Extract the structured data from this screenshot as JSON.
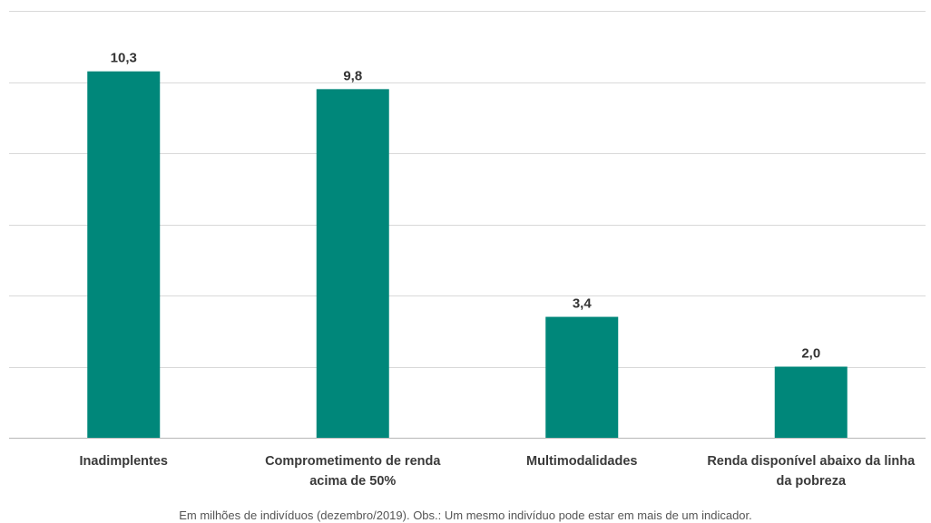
{
  "chart_data": {
    "type": "bar",
    "categories": [
      [
        "Inadimplentes"
      ],
      [
        "Comprometimento de renda",
        "acima de 50%"
      ],
      [
        "Multimodalidades"
      ],
      [
        "Renda disponível abaixo da linha",
        "da pobreza"
      ]
    ],
    "values": [
      10.3,
      9.8,
      3.4,
      2.0
    ],
    "value_labels": [
      "10,3",
      "9,8",
      "3,4",
      "2,0"
    ],
    "title": "",
    "xlabel": "",
    "ylabel": "",
    "ylim": [
      0,
      12
    ],
    "y_tick_step": 2,
    "grid": true,
    "legend": "none",
    "bar_color": "#00877A",
    "note": "Em milhões de indivíduos (dezembro/2019). Obs.: Um mesmo indivíduo pode estar em mais de um indicador."
  }
}
